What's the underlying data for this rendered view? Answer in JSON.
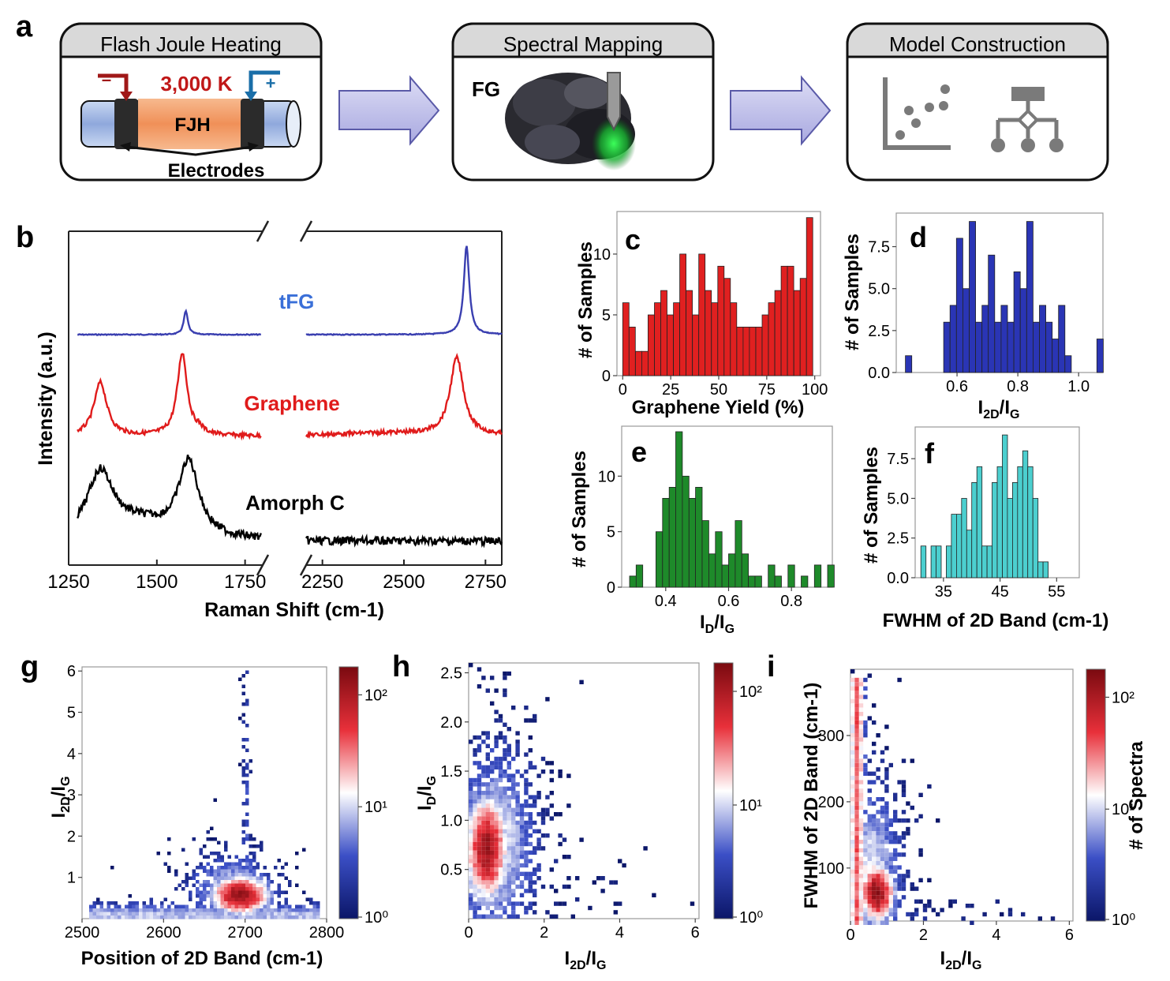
{
  "panel_letters": [
    "a",
    "b",
    "c",
    "d",
    "e",
    "f",
    "g",
    "h",
    "i"
  ],
  "workflow": {
    "boxes": [
      {
        "title": "Flash Joule Heating"
      },
      {
        "title": "Spectral Mapping"
      },
      {
        "title": "Model Construction"
      }
    ],
    "fjh": {
      "temp": "3,000 K",
      "core": "FJH",
      "electrodes": "Electrodes",
      "minus": "–",
      "plus": "+"
    },
    "mapping": {
      "label": "FG"
    }
  },
  "chart_data": [
    {
      "id": "b",
      "type": "line",
      "xlabel": "Raman Shift (cm-1)",
      "ylabel": "Intensity (a.u.)",
      "xlim_left": [
        1250,
        1800
      ],
      "xlim_right": [
        2200,
        2800
      ],
      "xticks": [
        "1250",
        "1500",
        "1750",
        "2250",
        "2500",
        "2750"
      ],
      "series": [
        {
          "name": "tFG",
          "color": "#3a3fb0",
          "peaks_cm1": [
            1580,
            2690
          ]
        },
        {
          "name": "Graphene",
          "color": "#e01b1b",
          "peaks_cm1": [
            1340,
            1570,
            2660
          ]
        },
        {
          "name": "Amorph C",
          "color": "#000000",
          "peaks_cm1": [
            1340,
            1590
          ]
        }
      ]
    },
    {
      "id": "c",
      "type": "bar",
      "color": "#e02020",
      "xlabel": "Graphene Yield (%)",
      "ylabel": "# of Samples",
      "xlim": [
        -3,
        103
      ],
      "ylim": [
        0,
        13.5
      ],
      "xticks": [
        0,
        25,
        50,
        75,
        100
      ],
      "yticks": [
        0,
        5,
        10
      ],
      "bin_start": 0,
      "bin_width": 3.3,
      "values": [
        6,
        4,
        2,
        2,
        5,
        6,
        7,
        5,
        6,
        10,
        7,
        5,
        10,
        7,
        6,
        9,
        8,
        6,
        4,
        4,
        4,
        4,
        5,
        6,
        7,
        9,
        9,
        7,
        8,
        13
      ]
    },
    {
      "id": "d",
      "type": "bar",
      "color": "#2a35b5",
      "xlabel": "I2D/IG",
      "ylabel": "# of Samples",
      "xlim": [
        0.4,
        1.08
      ],
      "ylim": [
        0,
        9.5
      ],
      "xticks": [
        0.6,
        0.8,
        1.0
      ],
      "ytick_labels": [
        "0.0",
        "2.5",
        "5.0",
        "7.5"
      ],
      "yticks": [
        0,
        2.5,
        5,
        7.5
      ],
      "bin_start": 0.43,
      "bin_width": 0.021,
      "values": [
        1,
        0,
        0,
        0,
        0,
        0,
        3,
        4,
        8,
        5,
        9,
        3,
        4,
        7,
        3,
        4,
        3,
        6,
        5,
        9,
        3,
        4,
        3,
        2,
        4,
        1,
        0,
        0,
        0,
        0,
        2
      ]
    },
    {
      "id": "e",
      "type": "bar",
      "color": "#1e8a2a",
      "xlabel": "ID/IG",
      "ylabel": "# of Samples",
      "xlim": [
        0.26,
        0.93
      ],
      "ylim": [
        0,
        14.5
      ],
      "xticks": [
        0.4,
        0.6,
        0.8
      ],
      "yticks": [
        0,
        5,
        10
      ],
      "bin_start": 0.285,
      "bin_width": 0.021,
      "values": [
        1,
        2,
        0,
        0,
        5,
        8,
        9,
        14,
        10,
        8,
        9,
        6,
        3,
        5,
        2,
        3,
        6,
        3,
        1,
        1,
        0,
        2,
        1,
        0,
        2,
        0,
        1,
        0,
        2,
        0,
        2
      ]
    },
    {
      "id": "f",
      "type": "bar",
      "color": "#4ccfcf",
      "xlabel": "FWHM of 2D Band (cm-1)",
      "ylabel": "# of Samples",
      "xlim": [
        30,
        59
      ],
      "ylim": [
        0,
        9.5
      ],
      "xticks": [
        35,
        45,
        55
      ],
      "ytick_labels": [
        "0.0",
        "2.5",
        "5.0",
        "7.5"
      ],
      "yticks": [
        0,
        2.5,
        5,
        7.5
      ],
      "bin_start": 31,
      "bin_width": 0.9,
      "values": [
        2,
        0,
        2,
        2,
        0,
        2,
        4,
        4,
        5,
        3,
        6,
        7,
        2,
        2,
        6,
        7,
        9,
        5,
        6,
        7,
        8,
        7,
        5,
        1,
        1
      ]
    },
    {
      "id": "g",
      "type": "heatmap",
      "xlabel": "Position of 2D Band (cm-1)",
      "ylabel": "I2D/IG",
      "xlim": [
        2500,
        2800
      ],
      "ylim": [
        0,
        6.1
      ],
      "xticks": [
        2500,
        2600,
        2700,
        2800
      ],
      "yticks": [
        1,
        2,
        3,
        4,
        5,
        6
      ],
      "colorbar": {
        "scale": "log",
        "ticks": [
          "10⁰",
          "10¹",
          "10²"
        ]
      }
    },
    {
      "id": "h",
      "type": "heatmap",
      "xlabel": "I2D/IG",
      "ylabel": "ID/IG",
      "xlim": [
        0,
        6.1
      ],
      "ylim": [
        0,
        2.6
      ],
      "xticks": [
        0,
        2,
        4,
        6
      ],
      "yticks": [
        0.5,
        1.0,
        1.5,
        2.0,
        2.5
      ],
      "colorbar": {
        "scale": "log",
        "ticks": [
          "10⁰",
          "10¹",
          "10²"
        ]
      }
    },
    {
      "id": "i",
      "type": "heatmap",
      "xlabel": "I2D/IG",
      "ylabel": "FWHM of 2D Band (cm-1)",
      "xlim": [
        0,
        6.1
      ],
      "ylim": [
        20,
        400
      ],
      "xticks": [
        0,
        2,
        4,
        6
      ],
      "yticks": [
        100,
        200,
        300
      ],
      "colorbar": {
        "scale": "log",
        "label": "# of Spectra",
        "ticks": [
          "10⁰",
          "10¹",
          "10²"
        ]
      }
    }
  ]
}
